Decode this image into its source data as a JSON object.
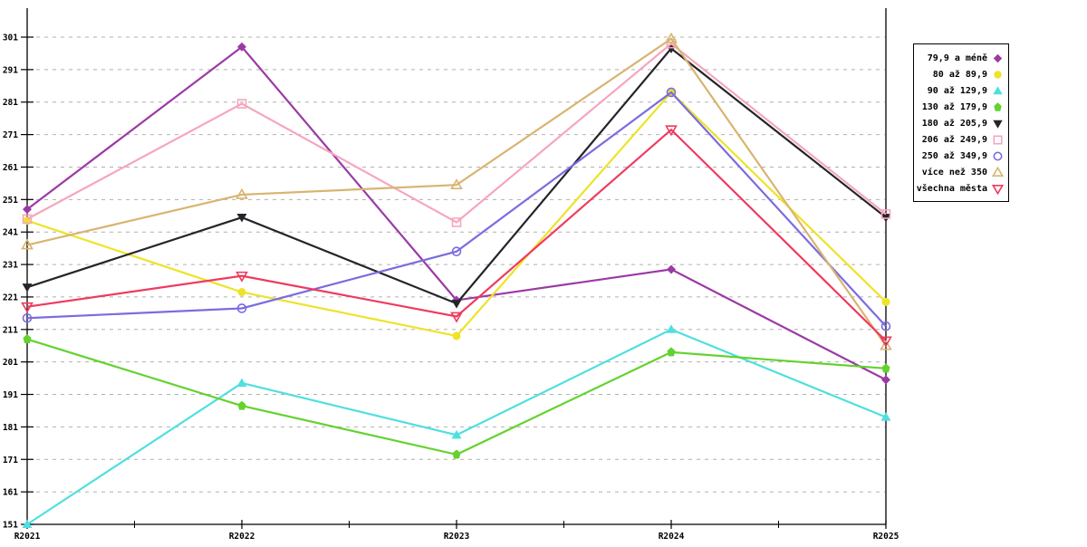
{
  "chart_data": {
    "type": "line",
    "title": "",
    "xlabel": "",
    "ylabel": "",
    "x_categories": [
      "R2021",
      "R2022",
      "R2023",
      "R2024",
      "R2025"
    ],
    "y_axis": {
      "min": 151,
      "max": 301,
      "step": 10
    },
    "grid": {
      "horizontal": true,
      "vertical": false,
      "style": "dashed",
      "color": "#b0b0b0"
    },
    "axis_color": "#000000",
    "background_color": "#ffffff",
    "legend_position": "outside-top-right",
    "series": [
      {
        "name": "79,9 a méně",
        "color": "#9b3aa5",
        "marker": "diamond-filled",
        "values": [
          248,
          298,
          220,
          229.5,
          195.5
        ]
      },
      {
        "name": "80 až 89,9",
        "color": "#ede32a",
        "marker": "circle-filled",
        "values": [
          244.5,
          222.5,
          209,
          284,
          219.5
        ]
      },
      {
        "name": "90 až 129,9",
        "color": "#4fdfe0",
        "marker": "triangle-up-filled",
        "values": [
          151,
          194.5,
          178.5,
          211,
          184
        ]
      },
      {
        "name": "130 až 179,9",
        "color": "#63d22e",
        "marker": "pentagon-filled",
        "values": [
          208,
          187.5,
          172.5,
          204,
          199
        ]
      },
      {
        "name": "180 až 205,9",
        "color": "#24242b",
        "marker": "triangle-down-filled",
        "values": [
          224,
          245.5,
          219,
          297.5,
          245.5
        ]
      },
      {
        "name": "206 až 249,9",
        "color": "#f6a6bc",
        "marker": "square-open",
        "values": [
          245,
          280.5,
          244,
          299,
          246.5
        ]
      },
      {
        "name": "250 až 349,9",
        "color": "#7a6ce0",
        "marker": "circle-open",
        "values": [
          214.5,
          217.5,
          235,
          284,
          212
        ]
      },
      {
        "name": "více než 350",
        "color": "#d9b470",
        "marker": "triangle-up-open",
        "values": [
          237,
          252.5,
          255.5,
          300.5,
          206
        ]
      },
      {
        "name": "všechna města",
        "color": "#ee3a5f",
        "marker": "triangle-down-open",
        "values": [
          218,
          227.5,
          215,
          272.5,
          207.5
        ]
      }
    ]
  }
}
